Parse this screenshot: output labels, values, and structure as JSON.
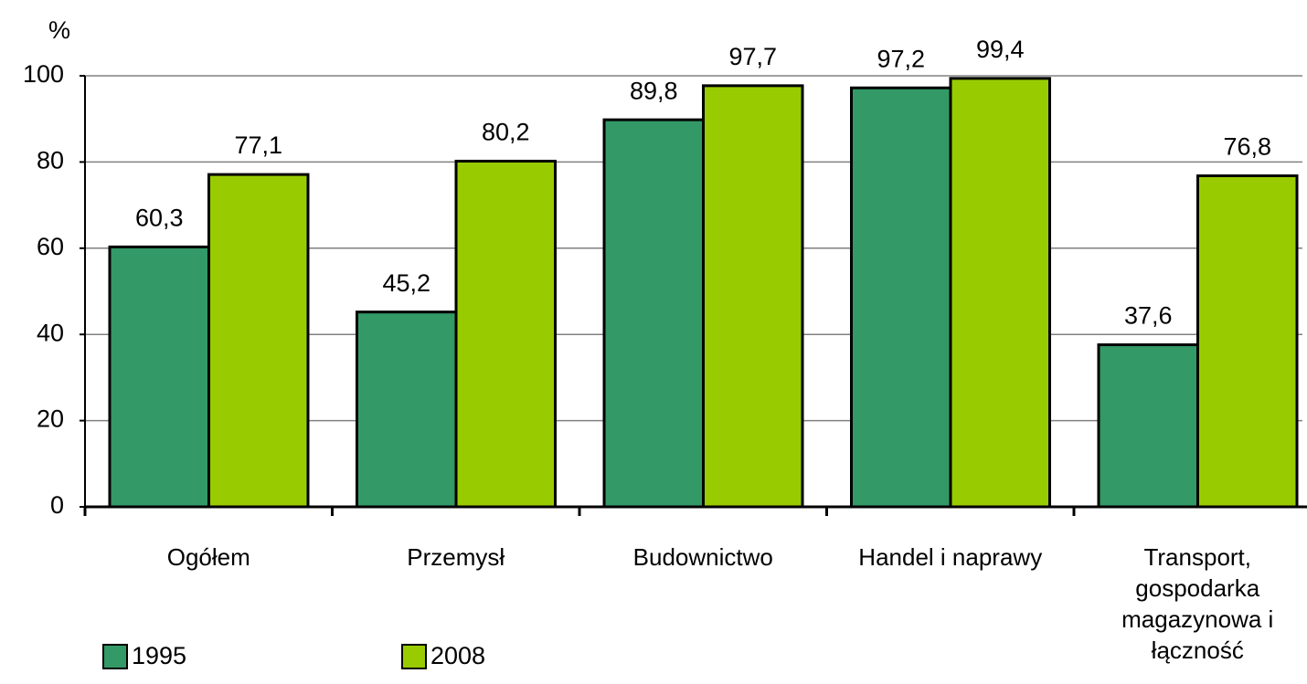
{
  "chart_data": {
    "type": "bar",
    "y_unit": "%",
    "categories": [
      "Ogółem",
      "Przemysł",
      "Budownictwo",
      "Handel i naprawy",
      "Transport, gospodarka magazynowa i łączność"
    ],
    "series": [
      {
        "name": "1995",
        "color": "#339966",
        "values": [
          60.3,
          45.2,
          89.8,
          97.2,
          37.6
        ],
        "value_labels": [
          "60,3",
          "45,2",
          "89,8",
          "97,2",
          "37,6"
        ]
      },
      {
        "name": "2008",
        "color": "#99cc00",
        "values": [
          77.1,
          80.2,
          97.7,
          99.4,
          76.8
        ],
        "value_labels": [
          "77,1",
          "80,2",
          "97,7",
          "99,4",
          "76,8"
        ]
      }
    ],
    "ylim": [
      0,
      100
    ],
    "yticks": [
      0,
      20,
      40,
      60,
      80,
      100
    ],
    "grid": true
  }
}
